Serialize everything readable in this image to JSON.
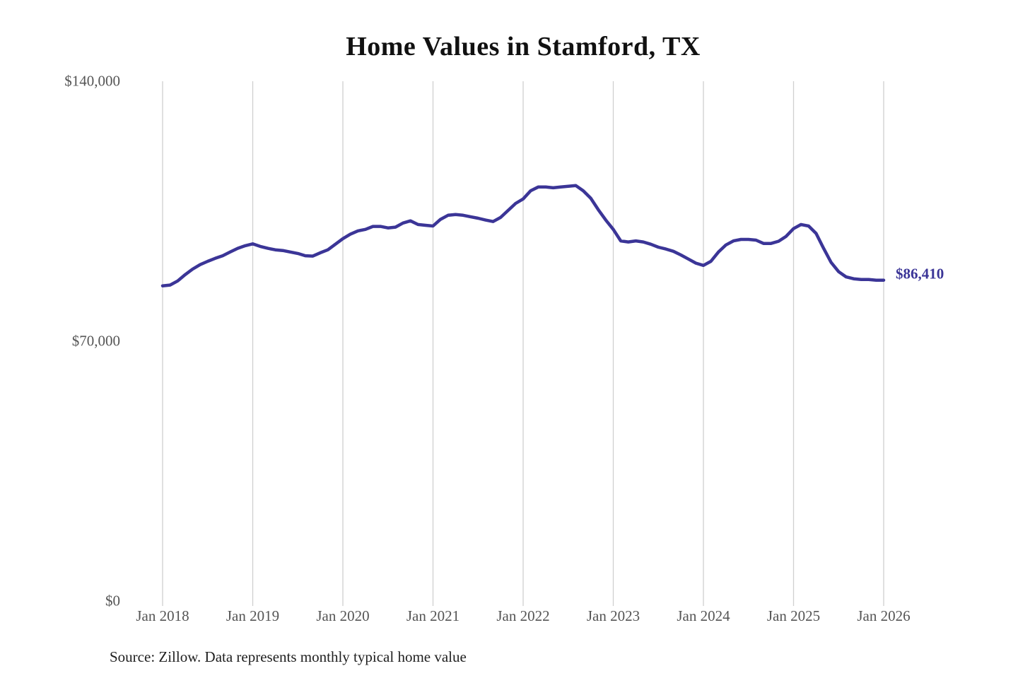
{
  "title": "Home Values in Stamford, TX",
  "source_note": "Source: Zillow. Data represents monthly typical home value",
  "end_label": "$86,410",
  "colors": {
    "line": "#3b3597",
    "end_label": "#3b3597",
    "grid": "#cfcfcf",
    "axis_text": "#555555",
    "title_text": "#111111",
    "background": "#ffffff"
  },
  "chart_data": {
    "type": "line",
    "title": "Home Values in Stamford, TX",
    "xlabel": "",
    "ylabel": "",
    "interval": "monthly",
    "x_start": "2018-01",
    "x_end": "2026-01",
    "ylim": [
      0,
      140000
    ],
    "grid": "vertical-only",
    "legend": "none",
    "y_tick_labels": [
      "$140,000",
      "$70,000",
      "$0"
    ],
    "y_tick_values": [
      140000,
      70000,
      0
    ],
    "x_tick_labels": [
      "Jan 2018",
      "Jan 2019",
      "Jan 2020",
      "Jan 2021",
      "Jan 2022",
      "Jan 2023",
      "Jan 2024",
      "Jan 2025",
      "Jan 2026"
    ],
    "last_point_label": "$86,410",
    "last_point_value": 86410,
    "x": [
      "2018-01",
      "2018-02",
      "2018-03",
      "2018-04",
      "2018-05",
      "2018-06",
      "2018-07",
      "2018-08",
      "2018-09",
      "2018-10",
      "2018-11",
      "2018-12",
      "2019-01",
      "2019-02",
      "2019-03",
      "2019-04",
      "2019-05",
      "2019-06",
      "2019-07",
      "2019-08",
      "2019-09",
      "2019-10",
      "2019-11",
      "2019-12",
      "2020-01",
      "2020-02",
      "2020-03",
      "2020-04",
      "2020-05",
      "2020-06",
      "2020-07",
      "2020-08",
      "2020-09",
      "2020-10",
      "2020-11",
      "2020-12",
      "2021-01",
      "2021-02",
      "2021-03",
      "2021-04",
      "2021-05",
      "2021-06",
      "2021-07",
      "2021-08",
      "2021-09",
      "2021-10",
      "2021-11",
      "2021-12",
      "2022-01",
      "2022-02",
      "2022-03",
      "2022-04",
      "2022-05",
      "2022-06",
      "2022-07",
      "2022-08",
      "2022-09",
      "2022-10",
      "2022-11",
      "2022-12",
      "2023-01",
      "2023-02",
      "2023-03",
      "2023-04",
      "2023-05",
      "2023-06",
      "2023-07",
      "2023-08",
      "2023-09",
      "2023-10",
      "2023-11",
      "2023-12",
      "2024-01",
      "2024-02",
      "2024-03",
      "2024-04",
      "2024-05",
      "2024-06",
      "2024-07",
      "2024-08",
      "2024-09",
      "2024-10",
      "2024-11",
      "2024-12",
      "2025-01",
      "2025-02",
      "2025-03",
      "2025-04",
      "2025-05",
      "2025-06",
      "2025-07",
      "2025-08",
      "2025-09",
      "2025-10",
      "2025-11",
      "2025-12",
      "2026-01"
    ],
    "values": [
      84900,
      85100,
      86200,
      87900,
      89400,
      90600,
      91500,
      92300,
      93000,
      94000,
      95000,
      95700,
      96200,
      95500,
      95000,
      94600,
      94400,
      94000,
      93600,
      93000,
      92900,
      93800,
      94600,
      96100,
      97600,
      98800,
      99700,
      100100,
      100900,
      100900,
      100500,
      100700,
      101800,
      102400,
      101400,
      101200,
      101000,
      102800,
      103900,
      104100,
      103900,
      103500,
      103100,
      102600,
      102200,
      103300,
      105200,
      107100,
      108300,
      110500,
      111500,
      111500,
      111300,
      111500,
      111700,
      111900,
      110500,
      108500,
      105400,
      102600,
      100100,
      97000,
      96700,
      97000,
      96700,
      96100,
      95300,
      94800,
      94200,
      93200,
      92100,
      91000,
      90400,
      91500,
      94000,
      95900,
      97000,
      97400,
      97400,
      97200,
      96300,
      96300,
      96900,
      98200,
      100300,
      101400,
      101000,
      99000,
      95000,
      91200,
      88700,
      87300,
      86800,
      86600,
      86600,
      86400,
      86410
    ]
  }
}
